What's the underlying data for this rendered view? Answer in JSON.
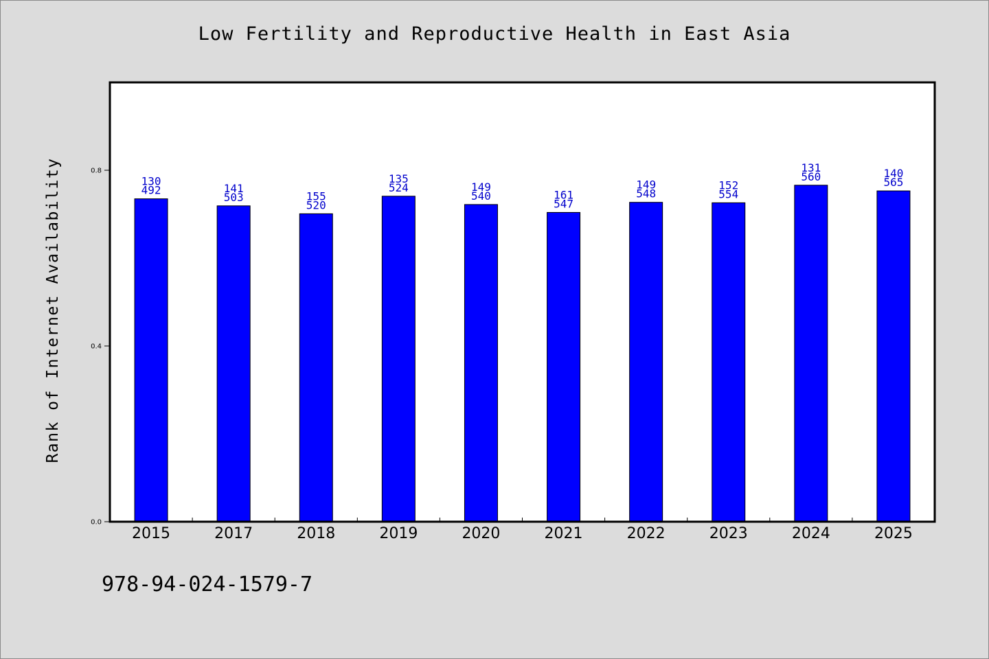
{
  "chart_data": {
    "type": "bar",
    "title": "Low Fertility and Reproductive Health in East Asia",
    "xlabel": "",
    "ylabel": "Rank of Internet Availability",
    "categories": [
      "2015",
      "2017",
      "2018",
      "2019",
      "2020",
      "2021",
      "2022",
      "2023",
      "2024",
      "2025"
    ],
    "values": [
      0.735,
      0.719,
      0.701,
      0.741,
      0.722,
      0.704,
      0.727,
      0.726,
      0.766,
      0.753
    ],
    "data_labels": [
      [
        "130",
        "492"
      ],
      [
        "141",
        "503"
      ],
      [
        "155",
        "520"
      ],
      [
        "135",
        "524"
      ],
      [
        "149",
        "540"
      ],
      [
        "161",
        "547"
      ],
      [
        "149",
        "548"
      ],
      [
        "152",
        "554"
      ],
      [
        "131",
        "560"
      ],
      [
        "140",
        "565"
      ]
    ],
    "yticks": [
      "0.0",
      "0.4",
      "0.8"
    ],
    "ylim": [
      0,
      1.0
    ],
    "grid": false,
    "legend": "none",
    "colors": {
      "bar": "#0000ff",
      "bar_edge": "#000000",
      "label": "#0000cc",
      "background": "#dcdcdc",
      "plot_background": "#ffffff"
    }
  },
  "footer": {
    "isbn": "978-94-024-1579-7"
  }
}
